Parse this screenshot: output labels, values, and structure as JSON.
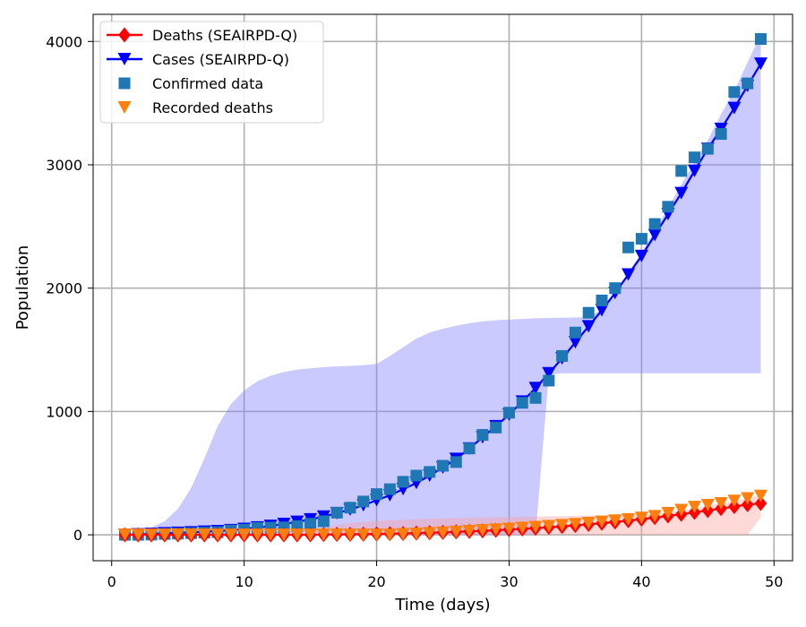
{
  "chart_data": {
    "type": "line",
    "xlabel": "Time (days)",
    "ylabel": "Population",
    "xlim": [
      -1.4,
      51.4
    ],
    "ylim": [
      -210,
      4220
    ],
    "xticks": [
      0,
      10,
      20,
      30,
      40,
      50
    ],
    "yticks": [
      0,
      1000,
      2000,
      3000,
      4000
    ],
    "grid": true,
    "legend_position": "top-left",
    "colors": {
      "deaths": "#ff0000",
      "cases": "#0000ff",
      "confirmed": "#1f77b4",
      "recorded_deaths": "#ff7f0e",
      "band_cases": "#7b7bff",
      "band_deaths": "#ff9e9e",
      "grid": "#b0b0b0"
    },
    "series": [
      {
        "name": "Deaths (SEAIRPD-Q)",
        "style": "line-diamond",
        "x": [
          1,
          2,
          3,
          4,
          5,
          6,
          7,
          8,
          9,
          10,
          11,
          12,
          13,
          14,
          15,
          16,
          17,
          18,
          19,
          20,
          21,
          22,
          23,
          24,
          25,
          26,
          27,
          28,
          29,
          30,
          31,
          32,
          33,
          34,
          35,
          36,
          37,
          38,
          39,
          40,
          41,
          42,
          43,
          44,
          45,
          46,
          47,
          48,
          49
        ],
        "y": [
          0,
          0,
          0,
          0,
          0,
          0,
          0,
          0,
          0,
          0,
          0,
          0,
          0,
          0,
          0,
          2,
          3,
          4,
          5,
          7,
          9,
          11,
          14,
          17,
          20,
          24,
          28,
          32,
          37,
          42,
          48,
          54,
          61,
          68,
          76,
          85,
          94,
          104,
          115,
          127,
          140,
          153,
          167,
          182,
          197,
          213,
          229,
          245,
          255
        ]
      },
      {
        "name": "Cases (SEAIRPD-Q)",
        "style": "line-triangle",
        "x": [
          1,
          2,
          3,
          4,
          5,
          6,
          7,
          8,
          9,
          10,
          11,
          12,
          13,
          14,
          15,
          16,
          17,
          18,
          19,
          20,
          21,
          22,
          23,
          24,
          25,
          26,
          27,
          28,
          29,
          30,
          31,
          32,
          33,
          34,
          35,
          36,
          37,
          38,
          39,
          40,
          41,
          42,
          43,
          44,
          45,
          46,
          47,
          48,
          49
        ],
        "y": [
          0,
          3,
          7,
          12,
          16,
          20,
          25,
          30,
          38,
          48,
          60,
          72,
          88,
          105,
          125,
          148,
          175,
          205,
          240,
          280,
          320,
          370,
          420,
          480,
          545,
          615,
          700,
          790,
          880,
          975,
          1080,
          1190,
          1310,
          1430,
          1560,
          1690,
          1820,
          1960,
          2110,
          2260,
          2430,
          2600,
          2770,
          2950,
          3130,
          3290,
          3460,
          3640,
          3820
        ]
      },
      {
        "name": "Confirmed data",
        "style": "square",
        "x": [
          1,
          2,
          3,
          4,
          5,
          6,
          7,
          8,
          9,
          10,
          11,
          12,
          13,
          14,
          15,
          16,
          17,
          18,
          19,
          20,
          21,
          22,
          23,
          24,
          25,
          26,
          27,
          28,
          29,
          30,
          31,
          32,
          33,
          34,
          35,
          36,
          37,
          38,
          39,
          40,
          41,
          42,
          43,
          44,
          45,
          46,
          47,
          48,
          49
        ],
        "y": [
          0,
          0,
          2,
          7,
          10,
          14,
          18,
          22,
          35,
          42,
          55,
          58,
          60,
          70,
          90,
          110,
          180,
          220,
          270,
          330,
          370,
          430,
          480,
          510,
          560,
          590,
          700,
          810,
          870,
          990,
          1070,
          1110,
          1250,
          1450,
          1640,
          1800,
          1900,
          2000,
          2330,
          2400,
          2520,
          2660,
          2950,
          3060,
          3130,
          3250,
          3590,
          3660,
          4020
        ]
      },
      {
        "name": "Recorded deaths",
        "style": "triangle-down",
        "x": [
          1,
          2,
          3,
          4,
          5,
          6,
          7,
          8,
          9,
          10,
          11,
          12,
          13,
          14,
          15,
          16,
          17,
          18,
          19,
          20,
          21,
          22,
          23,
          24,
          25,
          26,
          27,
          28,
          29,
          30,
          31,
          32,
          33,
          34,
          35,
          36,
          37,
          38,
          39,
          40,
          41,
          42,
          43,
          44,
          45,
          46,
          47,
          48,
          49
        ],
        "y": [
          0,
          0,
          0,
          0,
          0,
          0,
          0,
          0,
          0,
          0,
          0,
          0,
          0,
          0,
          0,
          0,
          0,
          0,
          0,
          0,
          0,
          4,
          8,
          12,
          17,
          23,
          30,
          36,
          42,
          48,
          55,
          62,
          70,
          78,
          86,
          95,
          105,
          115,
          125,
          137,
          150,
          175,
          200,
          225,
          240,
          255,
          275,
          295,
          315
        ]
      }
    ],
    "bands": [
      {
        "for": "Cases (SEAIRPD-Q)",
        "x": [
          1,
          2,
          3,
          4,
          5,
          6,
          7,
          8,
          9,
          10,
          11,
          12,
          13,
          14,
          15,
          16,
          17,
          18,
          19,
          20,
          21,
          22,
          23,
          24,
          25,
          26,
          27,
          28,
          29,
          30,
          31,
          32,
          33,
          34,
          35,
          36,
          37,
          38,
          39,
          40,
          41,
          42,
          43,
          44,
          45,
          46,
          47,
          48,
          49
        ],
        "upper": [
          0,
          30,
          60,
          110,
          210,
          380,
          620,
          880,
          1060,
          1170,
          1245,
          1290,
          1320,
          1340,
          1350,
          1360,
          1365,
          1370,
          1375,
          1385,
          1450,
          1520,
          1590,
          1640,
          1670,
          1695,
          1715,
          1730,
          1740,
          1745,
          1750,
          1755,
          1758,
          1760,
          1762,
          1765,
          1830,
          1960,
          2120,
          2290,
          2470,
          2650,
          2840,
          3020,
          3200,
          3410,
          3600,
          3830,
          4060
        ],
        "lower": [
          0,
          0,
          0,
          0,
          0,
          0,
          0,
          0,
          0,
          0,
          0,
          0,
          0,
          0,
          0,
          0,
          0,
          0,
          0,
          0,
          0,
          0,
          0,
          0,
          0,
          0,
          0,
          0,
          0,
          0,
          0,
          0,
          1300,
          1310,
          1310,
          1310,
          1310,
          1310,
          1310,
          1310,
          1310,
          1310,
          1310,
          1310,
          1310,
          1310,
          1310,
          1310,
          1310
        ]
      },
      {
        "for": "Deaths (SEAIRPD-Q)",
        "x": [
          1,
          2,
          3,
          4,
          5,
          6,
          7,
          8,
          9,
          10,
          11,
          12,
          13,
          14,
          15,
          16,
          17,
          18,
          19,
          20,
          21,
          22,
          23,
          24,
          25,
          26,
          27,
          28,
          29,
          30,
          31,
          32,
          33,
          34,
          35,
          36,
          37,
          38,
          39,
          40,
          41,
          42,
          43,
          44,
          45,
          46,
          47,
          48,
          49
        ],
        "upper": [
          0,
          0,
          0,
          0,
          0,
          0,
          0,
          0,
          0,
          2,
          5,
          10,
          15,
          25,
          40,
          60,
          80,
          95,
          105,
          112,
          118,
          122,
          126,
          130,
          133,
          136,
          138,
          140,
          142,
          144,
          146,
          148,
          150,
          152,
          154,
          156,
          158,
          160,
          162,
          165,
          170,
          180,
          195,
          215,
          235,
          255,
          275,
          295,
          320
        ],
        "lower": [
          0,
          0,
          0,
          0,
          0,
          0,
          0,
          0,
          0,
          0,
          0,
          0,
          0,
          0,
          0,
          0,
          0,
          0,
          0,
          0,
          0,
          0,
          0,
          0,
          0,
          0,
          0,
          0,
          0,
          0,
          0,
          0,
          0,
          0,
          0,
          0,
          0,
          0,
          0,
          0,
          0,
          0,
          0,
          0,
          0,
          0,
          0,
          0,
          140
        ]
      }
    ]
  }
}
